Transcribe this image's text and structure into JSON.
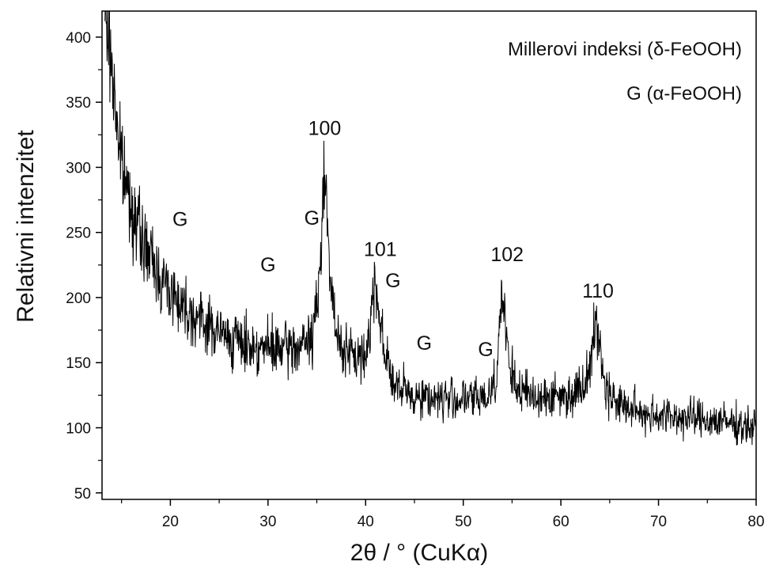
{
  "chart_data": {
    "type": "line",
    "xlabel": "2θ / ° (CuKα)",
    "ylabel": "Relativni intenzitet",
    "xlim": [
      13,
      80
    ],
    "ylim": [
      45,
      420
    ],
    "xticks": [
      20,
      30,
      40,
      50,
      60,
      70,
      80
    ],
    "yticks": [
      50,
      100,
      150,
      200,
      250,
      300,
      350,
      400
    ],
    "grid": false,
    "legend": {
      "placement": "top-right",
      "entries": [
        "Millerovi indeksi (δ-FeOOH)",
        "G (α-FeOOH)"
      ]
    },
    "series": [
      {
        "x": [
          13.5,
          15,
          17,
          19,
          21,
          23,
          25,
          27,
          29,
          31,
          33,
          34.5,
          35.3,
          35.8,
          36.3,
          37,
          38.5,
          40,
          41,
          41.8,
          43,
          45,
          47,
          49,
          51,
          52.5,
          53.4,
          54,
          54.6,
          55.5,
          57,
          59,
          61,
          62.5,
          63.6,
          64.6,
          66,
          68,
          70,
          72,
          74,
          76,
          78,
          80
        ],
        "y": [
          415,
          300,
          245,
          215,
          197,
          183,
          173,
          166,
          162,
          160,
          162,
          168,
          210,
          318,
          220,
          168,
          155,
          153,
          215,
          165,
          130,
          125,
          123,
          122,
          122,
          124,
          140,
          209,
          150,
          130,
          125,
          124,
          125,
          135,
          180,
          130,
          118,
          112,
          110,
          108,
          107,
          105,
          103,
          100
        ]
      }
    ],
    "annotations": [
      {
        "text": "100",
        "x": 35.8,
        "y": 325
      },
      {
        "text": "101",
        "x": 41.5,
        "y": 232
      },
      {
        "text": "102",
        "x": 54.5,
        "y": 228
      },
      {
        "text": "110",
        "x": 63.8,
        "y": 200
      },
      {
        "text": "G",
        "x": 21,
        "y": 255
      },
      {
        "text": "G",
        "x": 30,
        "y": 220
      },
      {
        "text": "G",
        "x": 34.5,
        "y": 256
      },
      {
        "text": "G",
        "x": 42.8,
        "y": 208
      },
      {
        "text": "G",
        "x": 46,
        "y": 160
      },
      {
        "text": "G",
        "x": 52.3,
        "y": 155
      }
    ]
  }
}
